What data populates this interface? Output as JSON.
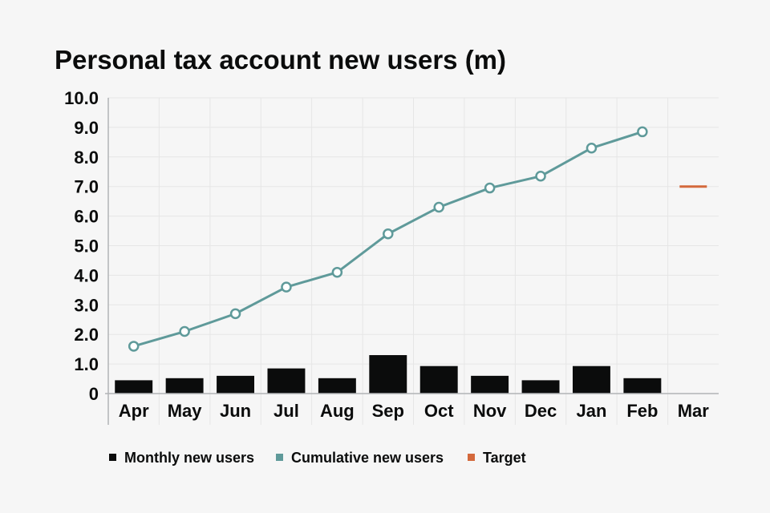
{
  "chart_data": {
    "type": "bar",
    "title": "Personal tax account new users (m)",
    "xlabel": "",
    "ylabel": "",
    "categories": [
      "Apr",
      "May",
      "Jun",
      "Jul",
      "Aug",
      "Sep",
      "Oct",
      "Nov",
      "Dec",
      "Jan",
      "Feb",
      "Mar"
    ],
    "ylim": [
      0,
      10
    ],
    "yticks": [
      0,
      1,
      2,
      3,
      4,
      5,
      6,
      7,
      8,
      9,
      10
    ],
    "ytick_labels": [
      "0",
      "1.0",
      "2.0",
      "3.0",
      "4.0",
      "5.0",
      "6.0",
      "7.0",
      "8.0",
      "9.0",
      "10.0"
    ],
    "grid": true,
    "legend_position": "bottom",
    "series": [
      {
        "name": "Monthly new users",
        "type": "bar",
        "color": "#0b0c0c",
        "values": [
          0.45,
          0.52,
          0.6,
          0.85,
          0.52,
          1.3,
          0.93,
          0.6,
          0.45,
          0.93,
          0.52,
          null
        ]
      },
      {
        "name": "Cumulative new users",
        "type": "line",
        "color": "#5f9a9a",
        "values": [
          1.6,
          2.1,
          2.7,
          3.6,
          4.1,
          5.4,
          6.3,
          6.95,
          7.35,
          8.3,
          8.85,
          null
        ]
      },
      {
        "name": "Target",
        "type": "marker",
        "color": "#d4693c",
        "values": [
          null,
          null,
          null,
          null,
          null,
          null,
          null,
          null,
          null,
          null,
          null,
          7.0
        ]
      }
    ]
  }
}
